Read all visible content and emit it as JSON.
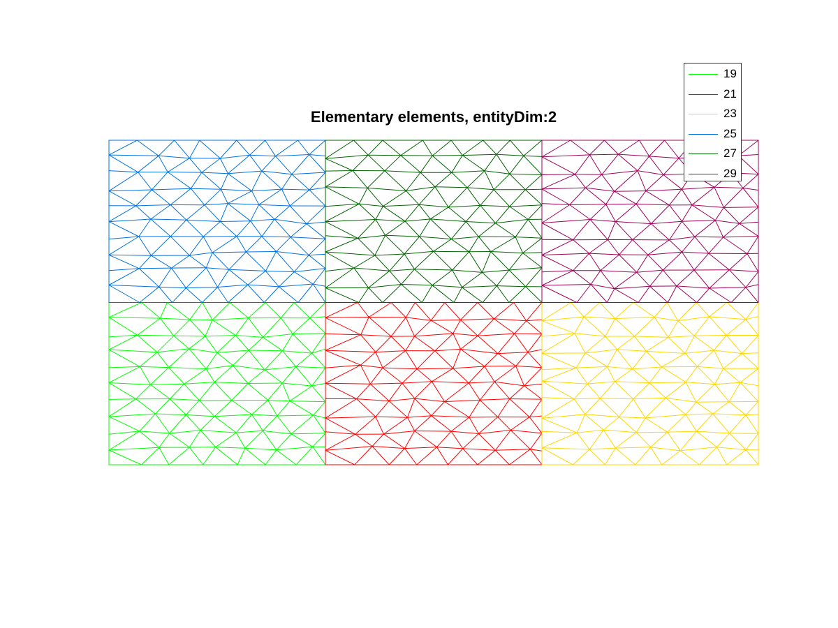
{
  "title": "Elementary elements, entityDim:2",
  "legend": {
    "items": [
      {
        "label": "19",
        "color": "#00ff00"
      },
      {
        "label": "21",
        "color": "#ff0000"
      },
      {
        "label": "23",
        "color": "#ffd700"
      },
      {
        "label": "25",
        "color": "#0072e0"
      },
      {
        "label": "27",
        "color": "#006400"
      },
      {
        "label": "29",
        "color": "#a0005a"
      }
    ]
  },
  "chart_data": {
    "type": "mesh",
    "title": "Elementary elements, entityDim:2",
    "grid": false,
    "axes_visible": false,
    "legend_placement": "top-right",
    "xlim": [
      0,
      3
    ],
    "ylim": [
      0,
      2
    ],
    "entities": [
      {
        "tag": "19",
        "color": "#00ff00",
        "region": {
          "x": [
            0,
            1
          ],
          "y": [
            0,
            1
          ]
        }
      },
      {
        "tag": "21",
        "color": "#ff0000",
        "region": {
          "x": [
            1,
            2
          ],
          "y": [
            0,
            1
          ]
        }
      },
      {
        "tag": "23",
        "color": "#ffd700",
        "region": {
          "x": [
            2,
            3
          ],
          "y": [
            0,
            1
          ]
        }
      },
      {
        "tag": "25",
        "color": "#0072e0",
        "region": {
          "x": [
            0,
            1
          ],
          "y": [
            1,
            2
          ]
        }
      },
      {
        "tag": "27",
        "color": "#006400",
        "region": {
          "x": [
            1,
            2
          ],
          "y": [
            1,
            2
          ]
        }
      },
      {
        "tag": "29",
        "color": "#a0005a",
        "region": {
          "x": [
            2,
            3
          ],
          "y": [
            1,
            2
          ]
        }
      }
    ]
  }
}
